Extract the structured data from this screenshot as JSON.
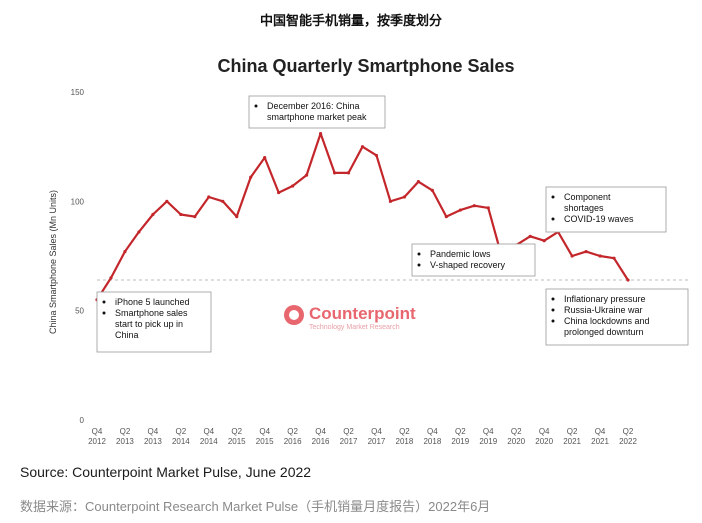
{
  "page": {
    "heading": "中国智能手机销量，按季度划分",
    "source_caption": "Source: Counterpoint Market Pulse, June 2022",
    "footer_caption": "数据来源：Counterpoint Research Market Pulse（手机销量月度报告）2022年6月"
  },
  "logo": {
    "name": "Counterpoint",
    "tagline": "Technology Market Research"
  },
  "colors": {
    "series": "#c3272b",
    "logo": "#e8676f",
    "baseline": "#bdbdbd",
    "box_border": "#9a9a9a"
  },
  "chart_data": {
    "type": "line",
    "title": "China Quarterly Smartphone Sales",
    "ylabel": "China Smartphone Sales (Mn Units)",
    "xlabel": "",
    "ylim": [
      0,
      150
    ],
    "yticks": [
      0,
      50,
      100,
      150
    ],
    "grid": false,
    "reference_line": 64,
    "x": [
      "Q4 2012",
      "Q1 2013",
      "Q2 2013",
      "Q3 2013",
      "Q4 2013",
      "Q1 2014",
      "Q2 2014",
      "Q3 2014",
      "Q4 2014",
      "Q1 2015",
      "Q2 2015",
      "Q3 2015",
      "Q4 2015",
      "Q1 2016",
      "Q2 2016",
      "Q3 2016",
      "Q4 2016",
      "Q1 2017",
      "Q2 2017",
      "Q3 2017",
      "Q4 2017",
      "Q1 2018",
      "Q2 2018",
      "Q3 2018",
      "Q4 2018",
      "Q1 2019",
      "Q2 2019",
      "Q3 2019",
      "Q4 2019",
      "Q1 2020",
      "Q2 2020",
      "Q3 2020",
      "Q4 2020",
      "Q1 2021",
      "Q2 2021",
      "Q3 2021",
      "Q4 2021",
      "Q1 2022",
      "Q2 2022"
    ],
    "values": [
      55,
      65,
      77,
      86,
      94,
      100,
      94,
      93,
      102,
      100,
      93,
      111,
      120,
      104,
      107,
      112,
      131,
      113,
      113,
      125,
      121,
      100,
      102,
      109,
      105,
      93,
      96,
      98,
      97,
      74,
      80,
      84,
      82,
      86,
      75,
      77,
      75,
      74,
      64
    ],
    "tick_labels": [
      {
        "q": "Q4",
        "y": "2012",
        "i": 0
      },
      {
        "q": "Q2",
        "y": "2013",
        "i": 2
      },
      {
        "q": "Q4",
        "y": "2013",
        "i": 4
      },
      {
        "q": "Q2",
        "y": "2014",
        "i": 6
      },
      {
        "q": "Q4",
        "y": "2014",
        "i": 8
      },
      {
        "q": "Q2",
        "y": "2015",
        "i": 10
      },
      {
        "q": "Q4",
        "y": "2015",
        "i": 12
      },
      {
        "q": "Q2",
        "y": "2016",
        "i": 14
      },
      {
        "q": "Q4",
        "y": "2016",
        "i": 16
      },
      {
        "q": "Q2",
        "y": "2017",
        "i": 18
      },
      {
        "q": "Q4",
        "y": "2017",
        "i": 20
      },
      {
        "q": "Q2",
        "y": "2018",
        "i": 22
      },
      {
        "q": "Q4",
        "y": "2018",
        "i": 24
      },
      {
        "q": "Q2",
        "y": "2019",
        "i": 26
      },
      {
        "q": "Q4",
        "y": "2019",
        "i": 28
      },
      {
        "q": "Q2",
        "y": "2020",
        "i": 30
      },
      {
        "q": "Q4",
        "y": "2020",
        "i": 32
      },
      {
        "q": "Q2",
        "y": "2021",
        "i": 34
      },
      {
        "q": "Q4",
        "y": "2021",
        "i": 36
      },
      {
        "q": "Q2",
        "y": "2022",
        "i": 38
      }
    ],
    "annotations": [
      {
        "id": "peak",
        "lines": [
          {
            "bullet": true,
            "text": "December 2016: China"
          },
          {
            "bullet": false,
            "text": "smartphone market peak"
          }
        ]
      },
      {
        "id": "iphone5",
        "lines": [
          {
            "bullet": true,
            "text": "iPhone 5 launched"
          },
          {
            "bullet": true,
            "text": "Smartphone sales"
          },
          {
            "bullet": false,
            "text": "start to pick up in"
          },
          {
            "bullet": false,
            "text": "China"
          }
        ]
      },
      {
        "id": "pandemic",
        "lines": [
          {
            "bullet": true,
            "text": "Pandemic lows"
          },
          {
            "bullet": true,
            "text": "V-shaped recovery"
          }
        ]
      },
      {
        "id": "component",
        "lines": [
          {
            "bullet": true,
            "text": "Component"
          },
          {
            "bullet": false,
            "text": "shortages"
          },
          {
            "bullet": true,
            "text": "COVID-19 waves"
          }
        ]
      },
      {
        "id": "inflation",
        "lines": [
          {
            "bullet": true,
            "text": "Inflationary pressure"
          },
          {
            "bullet": true,
            "text": "Russia-Ukraine war"
          },
          {
            "bullet": true,
            "text": "China lockdowns and"
          },
          {
            "bullet": false,
            "text": "prolonged downturn"
          }
        ]
      }
    ]
  }
}
